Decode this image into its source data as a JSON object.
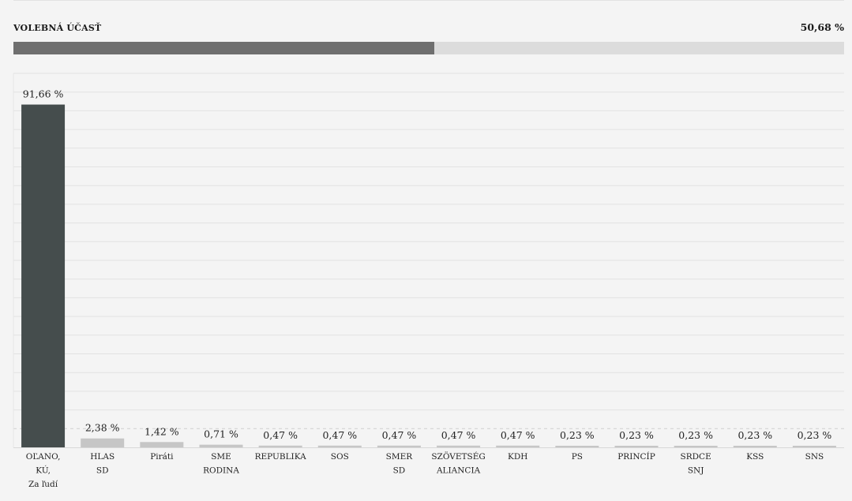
{
  "turnout": {
    "label": "VOLEBNÁ ÚČASŤ",
    "value_text": "50,68 %",
    "value": 50.68
  },
  "colors": {
    "winner_bar": "#454d4d",
    "other_bar": "#c6c6c6",
    "turnout_fill": "#6f6f6f",
    "turnout_track": "#dcdcdc",
    "grid": "#e2e2e2"
  },
  "chart_data": {
    "type": "bar",
    "categories": [
      [
        "OĽANO,",
        "KÚ,",
        "Za ľudí"
      ],
      [
        "HLAS",
        "SD"
      ],
      [
        "Piráti"
      ],
      [
        "SME",
        "RODINA"
      ],
      [
        "REPUBLIKA"
      ],
      [
        "SOS"
      ],
      [
        "SMER",
        "SD"
      ],
      [
        "SZÖVETSÉG",
        "ALIANCIA"
      ],
      [
        "KDH"
      ],
      [
        "PS"
      ],
      [
        "PRINCÍP"
      ],
      [
        "SRDCE",
        "SNJ"
      ],
      [
        "KSS"
      ],
      [
        "SNS"
      ]
    ],
    "values": [
      91.66,
      2.38,
      1.42,
      0.71,
      0.47,
      0.47,
      0.47,
      0.47,
      0.47,
      0.23,
      0.23,
      0.23,
      0.23,
      0.23
    ],
    "value_labels": [
      "91,66 %",
      "2,38 %",
      "1,42 %",
      "0,71 %",
      "0,47 %",
      "0,47 %",
      "0,47 %",
      "0,47 %",
      "0,47 %",
      "0,23 %",
      "0,23 %",
      "0,23 %",
      "0,23 %",
      "0,23 %"
    ],
    "ylim": [
      0,
      100
    ],
    "grid": true,
    "legend": "none"
  }
}
